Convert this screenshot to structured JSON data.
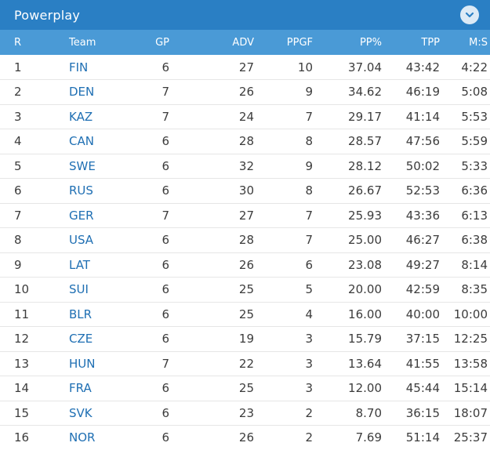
{
  "widget": {
    "title": "Powerplay",
    "collapse_icon": "chevron-down-icon",
    "colors": {
      "header": "#2a7fc4",
      "table_header": "#4a9ad6",
      "team_link": "#1f6fb3"
    }
  },
  "columns": [
    "R",
    "Team",
    "GP",
    "ADV",
    "PPGF",
    "PP%",
    "TPP",
    "M:S"
  ],
  "rows": [
    [
      "1",
      "FIN",
      "6",
      "27",
      "10",
      "37.04",
      "43:42",
      "4:22"
    ],
    [
      "2",
      "DEN",
      "7",
      "26",
      "9",
      "34.62",
      "46:19",
      "5:08"
    ],
    [
      "3",
      "KAZ",
      "7",
      "24",
      "7",
      "29.17",
      "41:14",
      "5:53"
    ],
    [
      "4",
      "CAN",
      "6",
      "28",
      "8",
      "28.57",
      "47:56",
      "5:59"
    ],
    [
      "5",
      "SWE",
      "6",
      "32",
      "9",
      "28.12",
      "50:02",
      "5:33"
    ],
    [
      "6",
      "RUS",
      "6",
      "30",
      "8",
      "26.67",
      "52:53",
      "6:36"
    ],
    [
      "7",
      "GER",
      "7",
      "27",
      "7",
      "25.93",
      "43:36",
      "6:13"
    ],
    [
      "8",
      "USA",
      "6",
      "28",
      "7",
      "25.00",
      "46:27",
      "6:38"
    ],
    [
      "9",
      "LAT",
      "6",
      "26",
      "6",
      "23.08",
      "49:27",
      "8:14"
    ],
    [
      "10",
      "SUI",
      "6",
      "25",
      "5",
      "20.00",
      "42:59",
      "8:35"
    ],
    [
      "11",
      "BLR",
      "6",
      "25",
      "4",
      "16.00",
      "40:00",
      "10:00"
    ],
    [
      "12",
      "CZE",
      "6",
      "19",
      "3",
      "15.79",
      "37:15",
      "12:25"
    ],
    [
      "13",
      "HUN",
      "7",
      "22",
      "3",
      "13.64",
      "41:55",
      "13:58"
    ],
    [
      "14",
      "FRA",
      "6",
      "25",
      "3",
      "12.00",
      "45:44",
      "15:14"
    ],
    [
      "15",
      "SVK",
      "6",
      "23",
      "2",
      "8.70",
      "36:15",
      "18:07"
    ],
    [
      "16",
      "NOR",
      "6",
      "26",
      "2",
      "7.69",
      "51:14",
      "25:37"
    ]
  ]
}
